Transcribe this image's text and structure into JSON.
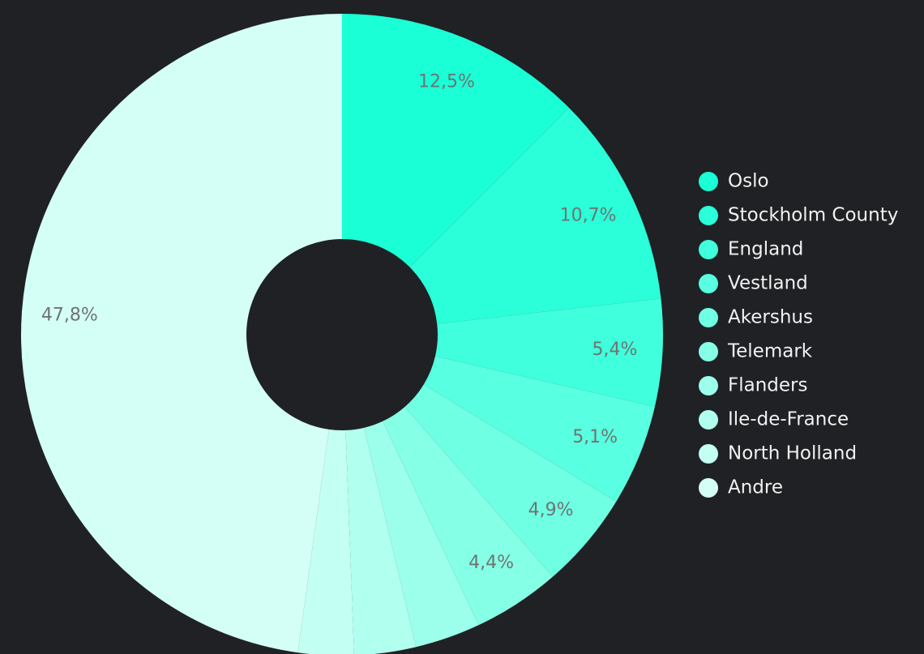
{
  "chart_data": {
    "type": "donut",
    "categories": [
      "Oslo",
      "Stockholm County",
      "England",
      "Vestland",
      "Akershus",
      "Telemark",
      "Flanders",
      "Ile-de-France",
      "North Holland",
      "Andre"
    ],
    "values": [
      12.5,
      10.7,
      5.4,
      5.1,
      4.9,
      4.4,
      3.3,
      3.1,
      2.8,
      47.8
    ],
    "value_labels": [
      "12,5%",
      "10,7%",
      "5,4%",
      "5,1%",
      "4,9%",
      "4,4%",
      null,
      null,
      null,
      "47,8%"
    ],
    "colors": [
      "#1affd6",
      "#2affd9",
      "#40ffdc",
      "#58ffe0",
      "#6fffe3",
      "#86ffe7",
      "#9cffeb",
      "#b0ffef",
      "#c3fff3",
      "#d4fff7"
    ],
    "legend": "right"
  }
}
